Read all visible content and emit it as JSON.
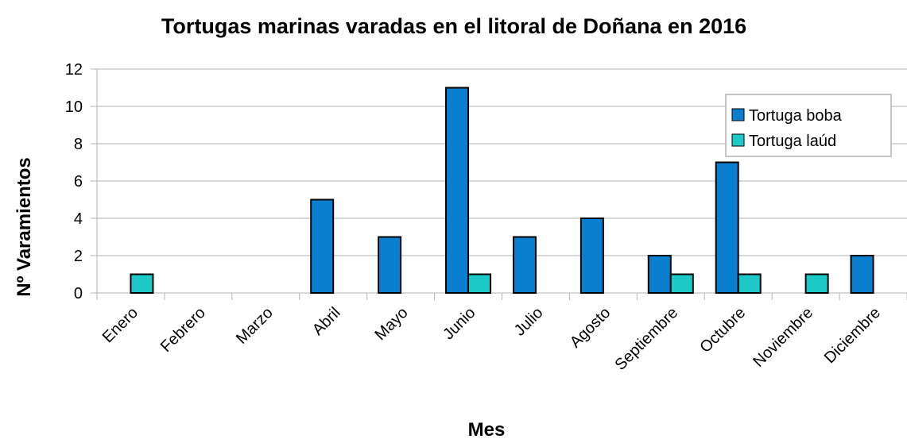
{
  "chart_data": {
    "type": "bar",
    "title": "Tortugas marinas varadas en el litoral de Doñana en 2016",
    "x_label": "Mes",
    "y_label": "Nº Varamientos",
    "categories": [
      "Enero",
      "Febrero",
      "Marzo",
      "Abril",
      "Mayo",
      "Junio",
      "Julio",
      "Agosto",
      "Septiembre",
      "Octubre",
      "Noviembre",
      "Diciembre"
    ],
    "series": [
      {
        "name": "Tortuga boba",
        "color": "#0a7fd0",
        "values": [
          0,
          0,
          0,
          5,
          3,
          11,
          3,
          4,
          2,
          7,
          0,
          2
        ]
      },
      {
        "name": "Tortuga laúd",
        "color": "#1dc9c6",
        "values": [
          1,
          0,
          0,
          0,
          0,
          1,
          0,
          0,
          1,
          1,
          1,
          0
        ]
      }
    ],
    "ylim": [
      0,
      12
    ],
    "yticks": [
      0,
      2,
      4,
      6,
      8,
      10,
      12
    ],
    "grid": true,
    "legend": "top-right"
  }
}
